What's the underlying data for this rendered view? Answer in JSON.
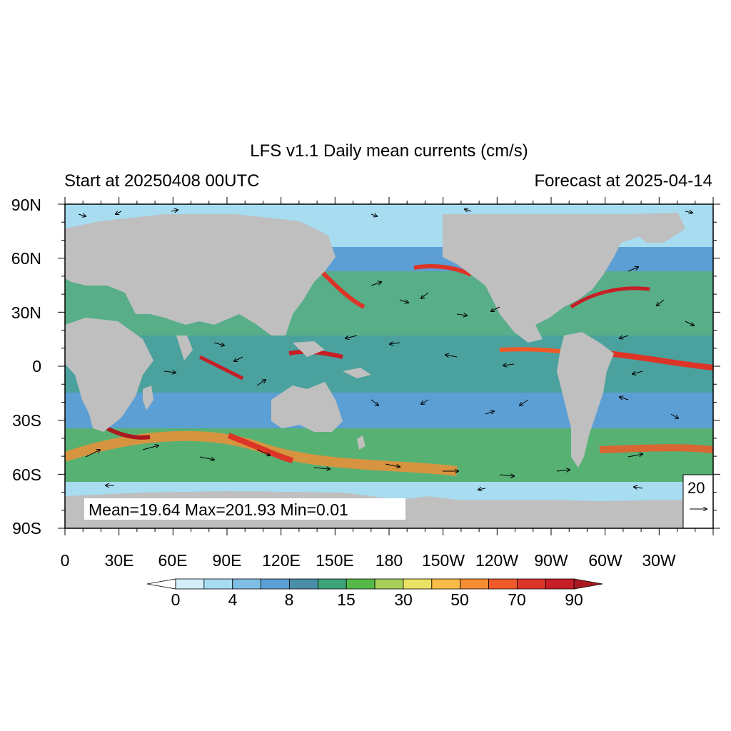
{
  "header": {
    "title": "LFS v1.1 Daily mean currents (cm/s)",
    "start": "Start at 20250408 00UTC",
    "forecast": "Forecast at 2025-04-14"
  },
  "stats": {
    "text": "Mean=19.64  Max=201.93  Min=0.01"
  },
  "reference_vector": {
    "label": "20",
    "arrow": "→"
  },
  "axes": {
    "lat_labels": [
      "90N",
      "60N",
      "30N",
      "0",
      "30S",
      "60S",
      "90S"
    ],
    "lon_labels": [
      "0",
      "30E",
      "60E",
      "90E",
      "120E",
      "150E",
      "180",
      "150W",
      "120W",
      "90W",
      "60W",
      "30W"
    ]
  },
  "colorbar": {
    "labels": [
      "0",
      "4",
      "8",
      "15",
      "30",
      "50",
      "70",
      "90"
    ],
    "colors": [
      "#ffffff",
      "#d2eef9",
      "#a7dcf1",
      "#7fbfe4",
      "#5c9fd4",
      "#4a8eaa",
      "#3fa378",
      "#55b94a",
      "#a6d05a",
      "#eae262",
      "#f9bd47",
      "#f78d33",
      "#ef5a28",
      "#dc3528",
      "#c81e26",
      "#a81a1f"
    ]
  },
  "colors": {
    "land": "#bfbfbf",
    "frame": "#000000"
  }
}
